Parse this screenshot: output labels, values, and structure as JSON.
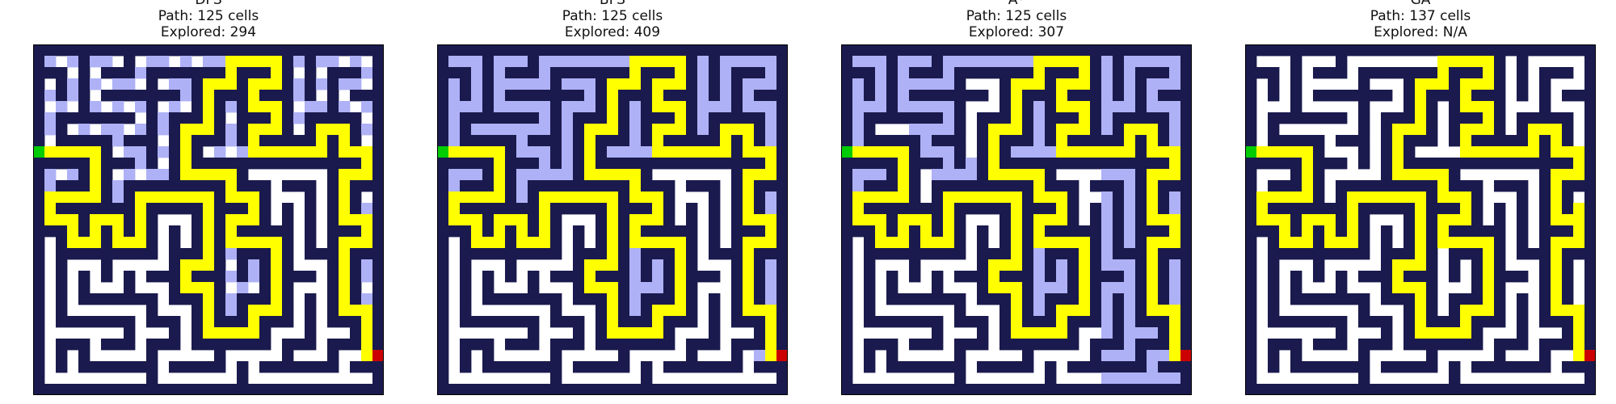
{
  "palette": {
    "wall": "#1a1a4e",
    "open": "#ffffff",
    "explored": "#aeb1f5",
    "path": "#ffff00",
    "start": "#00cc00",
    "goal": "#cc0000"
  },
  "panels": [
    {
      "algorithm": "DFS",
      "path_text": "Path: 125 cells",
      "explored_text": "Explored: 294"
    },
    {
      "algorithm": "BFS",
      "path_text": "Path: 125 cells",
      "explored_text": "Explored: 409"
    },
    {
      "algorithm": "A*",
      "path_text": "Path: 125 cells",
      "explored_text": "Explored: 307"
    },
    {
      "algorithm": "GA",
      "path_text": "Path: 137 cells",
      "explored_text": "Explored: N/A"
    }
  ]
}
